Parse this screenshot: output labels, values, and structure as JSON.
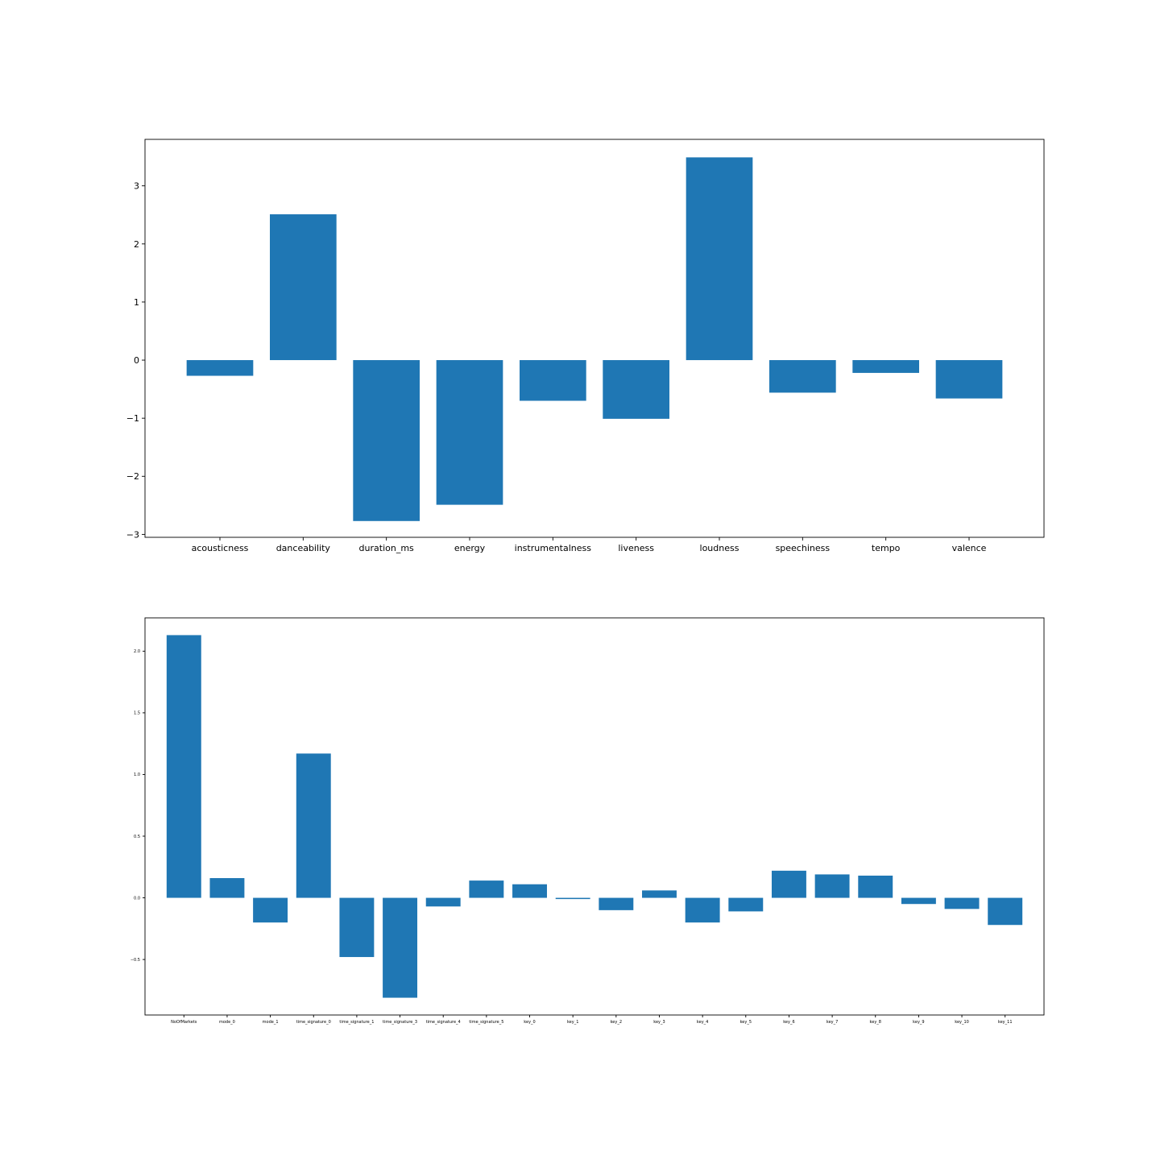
{
  "chart_data": [
    {
      "type": "bar",
      "color": "#1f77b4",
      "categories": [
        "acousticness",
        "danceability",
        "duration_ms",
        "energy",
        "instrumentalness",
        "liveness",
        "loudness",
        "speechiness",
        "tempo",
        "valence"
      ],
      "values": [
        -0.27,
        2.51,
        -2.77,
        -2.49,
        -0.7,
        -1.01,
        3.49,
        -0.56,
        -0.22,
        -0.66
      ],
      "ylim": [
        -3.05,
        3.8
      ],
      "yticks": [
        -3,
        -2,
        -1,
        0,
        1,
        2,
        3
      ],
      "ytick_labels": [
        "−3",
        "−2",
        "−1",
        "0",
        "1",
        "2",
        "3"
      ],
      "title": "",
      "xlabel": "",
      "ylabel": ""
    },
    {
      "type": "bar",
      "color": "#1f77b4",
      "categories": [
        "NoOfMarkets",
        "mode_0",
        "mode_1",
        "time_signature_0",
        "time_signature_1",
        "time_signature_3",
        "time_signature_4",
        "time_signature_5",
        "key_0",
        "key_1",
        "key_2",
        "key_3",
        "key_4",
        "key_5",
        "key_6",
        "key_7",
        "key_8",
        "key_9",
        "key_10",
        "key_11"
      ],
      "values": [
        2.13,
        0.16,
        -0.2,
        1.17,
        -0.48,
        -0.81,
        -0.07,
        0.14,
        0.11,
        -0.01,
        -0.1,
        0.06,
        -0.2,
        -0.11,
        0.22,
        0.19,
        0.18,
        -0.05,
        -0.09,
        -0.22
      ],
      "ylim": [
        -0.95,
        2.27
      ],
      "yticks": [
        -0.5,
        0.0,
        0.5,
        1.0,
        1.5,
        2.0
      ],
      "ytick_labels": [
        "−0.5",
        "0.0",
        "0.5",
        "1.0",
        "1.5",
        "2.0"
      ],
      "title": "",
      "xlabel": "",
      "ylabel": ""
    }
  ]
}
